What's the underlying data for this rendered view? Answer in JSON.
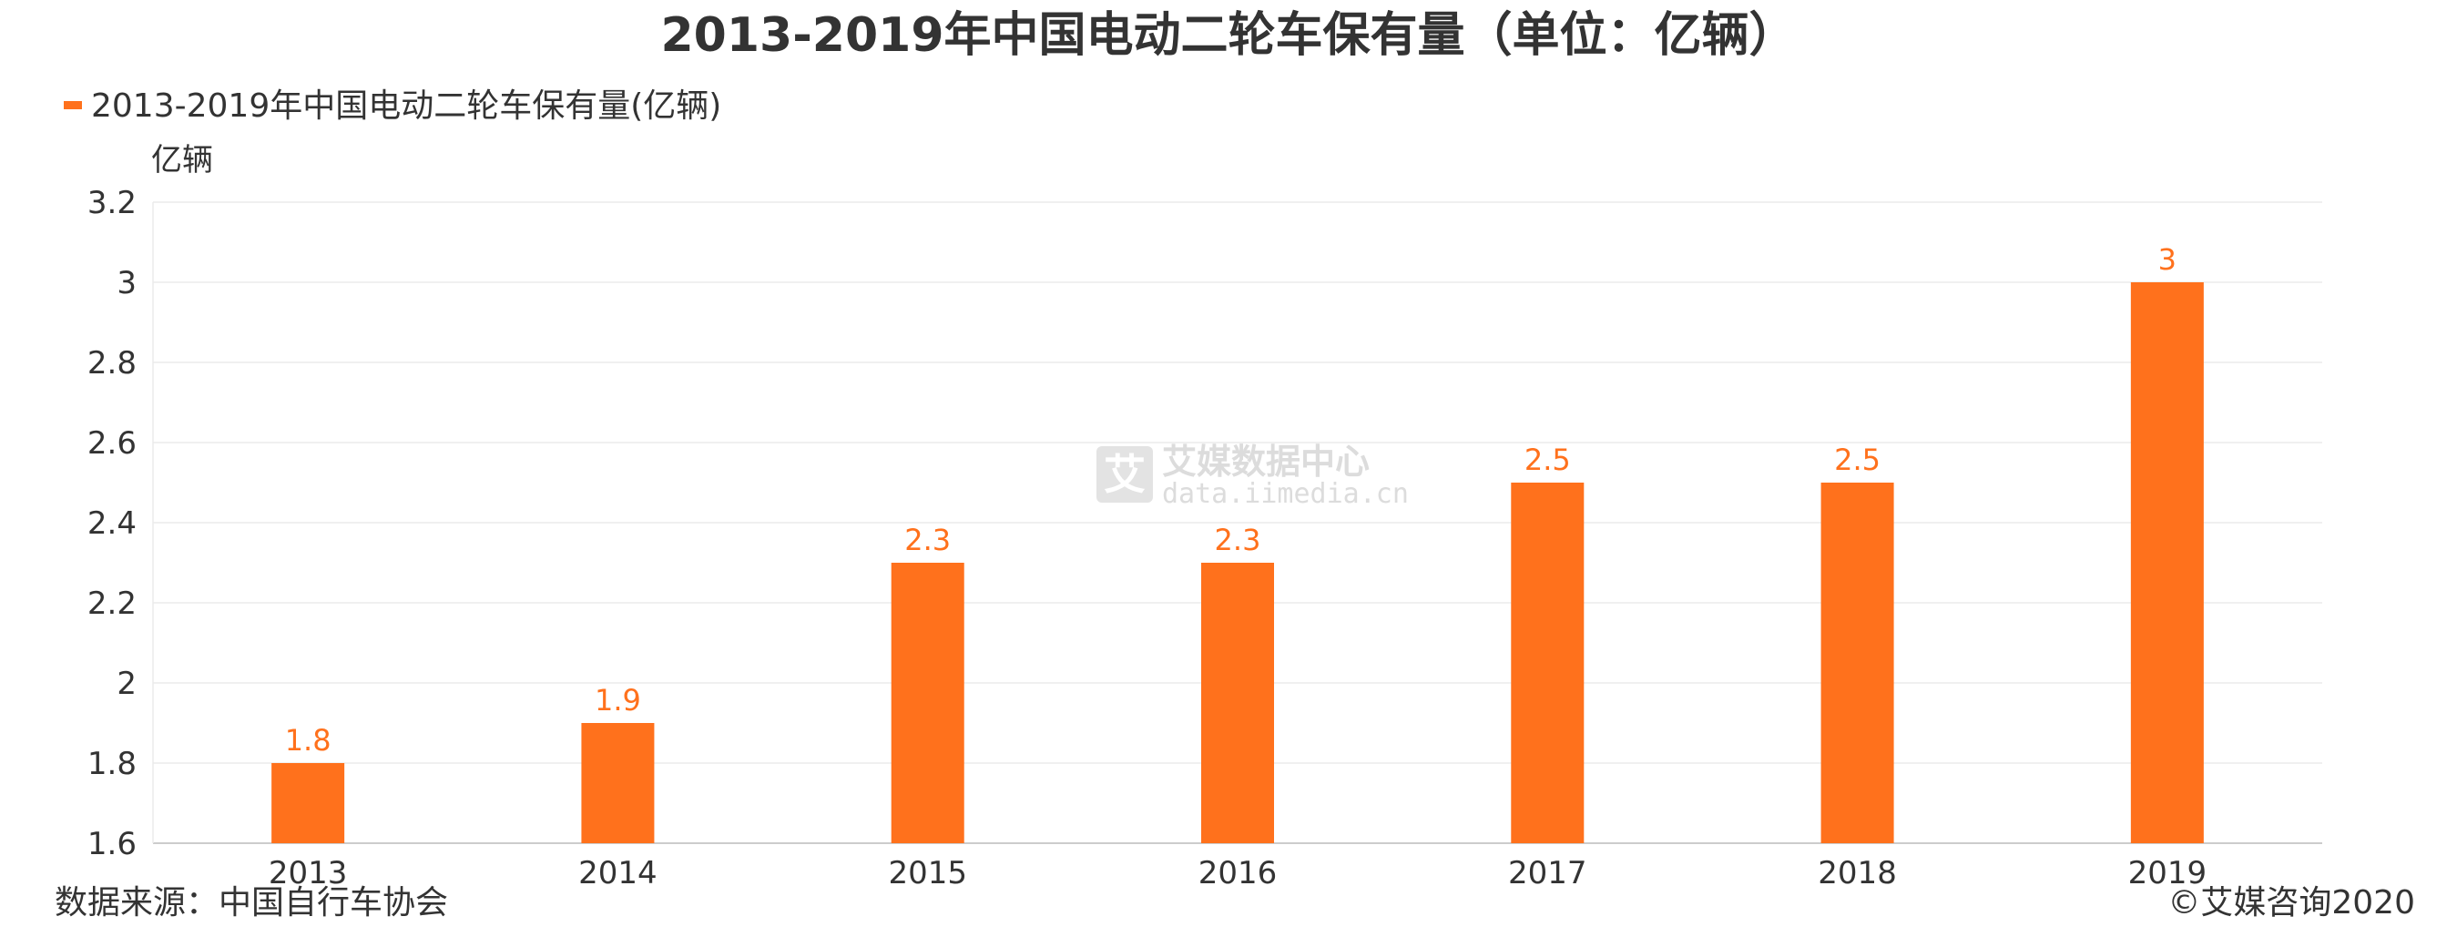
{
  "colors": {
    "bar": "#FF711C",
    "label": "#FF711C",
    "text": "#333333",
    "grid": "#EBEBEB",
    "axis": "#CCCCCC",
    "watermark": "#DCDCDC"
  },
  "watermark": {
    "logo_char": "艾",
    "cn": "艾媒数据中心",
    "url": "data.iimedia.cn"
  },
  "footer": {
    "source": "数据来源：中国自行车协会",
    "copyright": "©艾媒咨询2020"
  },
  "chart_data": {
    "type": "bar",
    "title": "2013-2019年中国电动二轮车保有量（单位：亿辆）",
    "legend": {
      "placement": "top-left",
      "entries": [
        "2013-2019年中国电动二轮车保有量(亿辆)"
      ]
    },
    "ylabel": "亿辆",
    "xlabel": "",
    "ylim": [
      1.6,
      3.2
    ],
    "yticks": [
      "1.6",
      "1.8",
      "2",
      "2.2",
      "2.4",
      "2.6",
      "2.8",
      "3",
      "3.2"
    ],
    "grid": true,
    "categories": [
      "2013",
      "2014",
      "2015",
      "2016",
      "2017",
      "2018",
      "2019"
    ],
    "series": [
      {
        "name": "2013-2019年中国电动二轮车保有量(亿辆)",
        "values": [
          1.8,
          1.9,
          2.3,
          2.3,
          2.5,
          2.5,
          3
        ],
        "labels": [
          "1.8",
          "1.9",
          "2.3",
          "2.3",
          "2.5",
          "2.5",
          "3"
        ]
      }
    ]
  }
}
